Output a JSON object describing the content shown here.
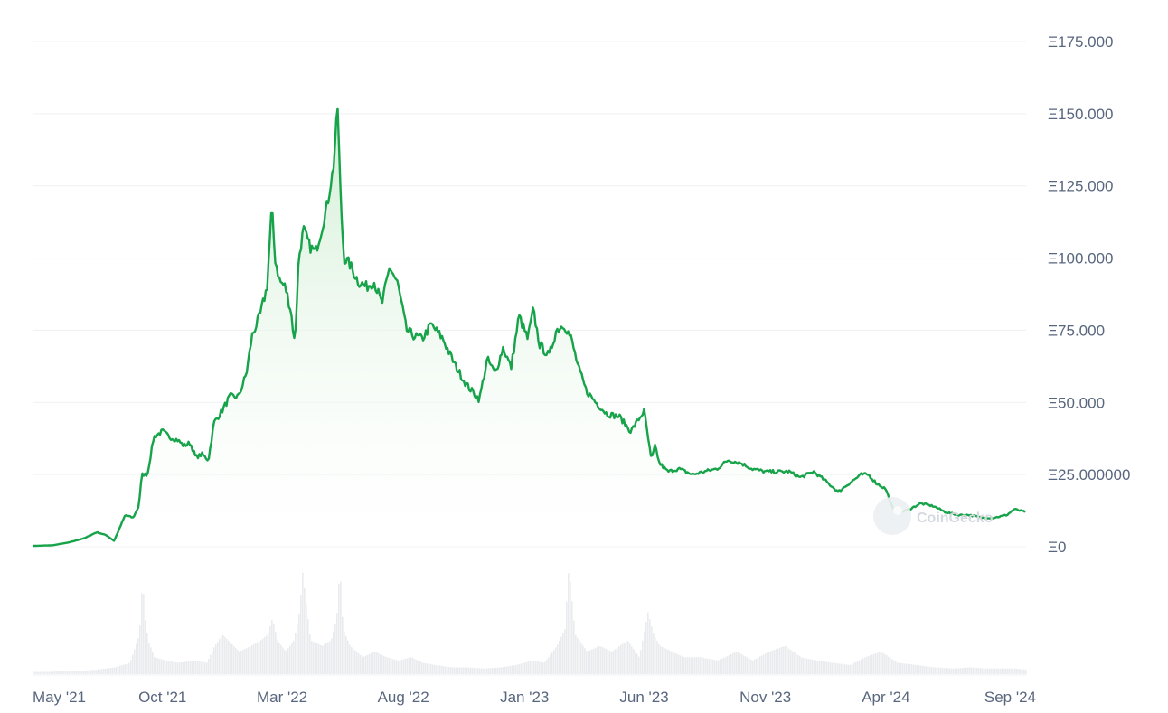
{
  "watermark": "CoinGecko",
  "colors": {
    "line": "#16a34a",
    "fill_top": "#cdeccf",
    "grid": "#eef0f3",
    "volume": "#e9ebee",
    "text": "#58667e"
  },
  "chart_data": {
    "type": "area",
    "title": "",
    "xlabel": "",
    "ylabel": "",
    "ylim": [
      0,
      175
    ],
    "y_ticks": [
      {
        "value": 175,
        "label": "Ξ175.000"
      },
      {
        "value": 150,
        "label": "Ξ150.000"
      },
      {
        "value": 125,
        "label": "Ξ125.000"
      },
      {
        "value": 100,
        "label": "Ξ100.000"
      },
      {
        "value": 75,
        "label": "Ξ75.000"
      },
      {
        "value": 50,
        "label": "Ξ50.000"
      },
      {
        "value": 25,
        "label": "Ξ25.000000"
      },
      {
        "value": 0,
        "label": "Ξ0"
      }
    ],
    "xlim": [
      "2021-04-20",
      "2024-09-25"
    ],
    "x_ticks": [
      {
        "date": "2021-05-01",
        "label": "May '21"
      },
      {
        "date": "2021-10-01",
        "label": "Oct '21"
      },
      {
        "date": "2022-03-01",
        "label": "Mar '22"
      },
      {
        "date": "2022-08-01",
        "label": "Aug '22"
      },
      {
        "date": "2023-01-01",
        "label": "Jan '23"
      },
      {
        "date": "2023-06-01",
        "label": "Jun '23"
      },
      {
        "date": "2023-11-01",
        "label": "Nov '23"
      },
      {
        "date": "2024-04-01",
        "label": "Apr '24"
      },
      {
        "date": "2024-09-01",
        "label": "Sep '24"
      }
    ],
    "grid": true,
    "legend": "none",
    "series": [
      {
        "x": [
          "2021-04-20",
          "2021-05-15",
          "2021-06-05",
          "2021-06-25",
          "2021-07-10",
          "2021-07-22",
          "2021-08-01",
          "2021-08-15",
          "2021-08-25",
          "2021-09-01",
          "2021-09-05",
          "2021-09-12",
          "2021-09-20",
          "2021-10-01",
          "2021-10-10",
          "2021-10-20",
          "2021-10-28",
          "2021-11-05",
          "2021-11-12",
          "2021-11-20",
          "2021-11-28",
          "2021-12-05",
          "2021-12-15",
          "2021-12-25",
          "2022-01-05",
          "2022-01-15",
          "2022-01-22",
          "2022-02-01",
          "2022-02-10",
          "2022-02-16",
          "2022-02-20",
          "2022-02-26",
          "2022-03-05",
          "2022-03-12",
          "2022-03-17",
          "2022-03-22",
          "2022-03-28",
          "2022-04-05",
          "2022-04-12",
          "2022-04-20",
          "2022-04-28",
          "2022-05-05",
          "2022-05-10",
          "2022-05-14",
          "2022-05-18",
          "2022-05-25",
          "2022-06-05",
          "2022-06-15",
          "2022-06-25",
          "2022-07-05",
          "2022-07-15",
          "2022-07-25",
          "2022-08-05",
          "2022-08-15",
          "2022-08-25",
          "2022-09-05",
          "2022-09-20",
          "2022-10-05",
          "2022-10-20",
          "2022-11-05",
          "2022-11-15",
          "2022-11-25",
          "2022-12-05",
          "2022-12-15",
          "2022-12-25",
          "2023-01-05",
          "2023-01-12",
          "2023-01-20",
          "2023-02-01",
          "2023-02-10",
          "2023-02-20",
          "2023-03-01",
          "2023-03-10",
          "2023-03-20",
          "2023-04-01",
          "2023-04-15",
          "2023-05-01",
          "2023-05-15",
          "2023-06-01",
          "2023-06-10",
          "2023-06-15",
          "2023-06-20",
          "2023-07-01",
          "2023-07-15",
          "2023-08-01",
          "2023-08-15",
          "2023-09-01",
          "2023-09-15",
          "2023-10-01",
          "2023-10-15",
          "2023-11-01",
          "2023-11-15",
          "2023-12-01",
          "2023-12-15",
          "2024-01-01",
          "2024-01-15",
          "2024-02-01",
          "2024-02-15",
          "2024-03-01",
          "2024-03-10",
          "2024-03-20",
          "2024-04-01",
          "2024-04-10",
          "2024-04-20",
          "2024-05-01",
          "2024-05-15",
          "2024-06-01",
          "2024-06-15",
          "2024-07-01",
          "2024-07-15",
          "2024-08-01",
          "2024-08-15",
          "2024-09-01",
          "2024-09-10",
          "2024-09-25"
        ],
        "values": [
          0.3,
          0.5,
          1.5,
          3,
          5,
          4,
          2,
          11,
          10,
          14,
          25,
          25,
          38,
          40,
          38,
          37,
          35,
          36,
          31,
          32,
          30,
          43,
          47,
          52,
          52,
          60,
          73,
          80,
          90,
          118,
          100,
          92,
          90,
          82,
          70,
          100,
          110,
          104,
          102,
          110,
          120,
          132,
          153,
          120,
          100,
          98,
          92,
          90,
          92,
          84,
          97,
          91,
          75,
          73,
          72,
          77,
          72,
          63,
          56,
          51,
          65,
          60,
          69,
          62,
          80,
          72,
          82,
          70,
          66,
          75,
          77,
          72,
          62,
          54,
          50,
          46,
          45,
          40,
          47,
          30,
          35,
          29,
          26,
          27,
          25,
          26,
          27,
          30,
          29,
          27,
          26,
          26,
          26,
          24,
          26,
          23,
          19,
          22,
          25,
          25,
          22,
          20,
          13,
          12,
          13,
          15,
          14,
          12,
          11,
          11,
          10,
          10,
          11,
          13,
          12
        ],
        "name": ""
      }
    ],
    "volume": {
      "x": [
        "2021-04-20",
        "2021-05-10",
        "2021-06-01",
        "2021-06-20",
        "2021-07-10",
        "2021-08-01",
        "2021-08-20",
        "2021-09-01",
        "2021-09-05",
        "2021-09-08",
        "2021-09-12",
        "2021-09-20",
        "2021-10-05",
        "2021-10-20",
        "2021-11-10",
        "2021-11-25",
        "2021-12-05",
        "2021-12-15",
        "2022-01-05",
        "2022-01-20",
        "2022-02-01",
        "2022-02-10",
        "2022-02-16",
        "2022-02-22",
        "2022-03-05",
        "2022-03-15",
        "2022-03-22",
        "2022-03-26",
        "2022-04-05",
        "2022-04-20",
        "2022-05-01",
        "2022-05-08",
        "2022-05-12",
        "2022-05-16",
        "2022-05-25",
        "2022-06-10",
        "2022-06-25",
        "2022-07-10",
        "2022-07-25",
        "2022-08-10",
        "2022-08-25",
        "2022-09-10",
        "2022-10-01",
        "2022-10-20",
        "2022-11-10",
        "2022-12-01",
        "2022-12-20",
        "2023-01-10",
        "2023-01-25",
        "2023-02-10",
        "2023-02-20",
        "2023-02-25",
        "2023-03-05",
        "2023-03-20",
        "2023-04-05",
        "2023-04-20",
        "2023-05-10",
        "2023-05-25",
        "2023-06-05",
        "2023-06-12",
        "2023-06-20",
        "2023-07-05",
        "2023-07-20",
        "2023-08-10",
        "2023-09-01",
        "2023-09-25",
        "2023-10-15",
        "2023-11-05",
        "2023-11-25",
        "2023-12-15",
        "2024-01-05",
        "2024-01-25",
        "2024-02-15",
        "2024-03-05",
        "2024-03-25",
        "2024-04-15",
        "2024-05-10",
        "2024-06-01",
        "2024-06-25",
        "2024-07-15",
        "2024-08-05",
        "2024-08-25",
        "2024-09-10",
        "2024-09-25"
      ],
      "values": [
        0.02,
        0.02,
        0.03,
        0.03,
        0.04,
        0.06,
        0.1,
        0.35,
        0.85,
        0.5,
        0.3,
        0.15,
        0.12,
        0.1,
        0.12,
        0.1,
        0.25,
        0.35,
        0.2,
        0.25,
        0.3,
        0.35,
        0.5,
        0.3,
        0.2,
        0.3,
        0.55,
        0.9,
        0.3,
        0.25,
        0.3,
        0.5,
        0.95,
        0.4,
        0.25,
        0.15,
        0.2,
        0.15,
        0.12,
        0.15,
        0.1,
        0.08,
        0.06,
        0.06,
        0.05,
        0.06,
        0.08,
        0.12,
        0.1,
        0.25,
        0.4,
        0.95,
        0.35,
        0.2,
        0.25,
        0.2,
        0.3,
        0.15,
        0.55,
        0.35,
        0.25,
        0.2,
        0.15,
        0.15,
        0.12,
        0.2,
        0.12,
        0.2,
        0.25,
        0.15,
        0.12,
        0.1,
        0.08,
        0.15,
        0.2,
        0.1,
        0.08,
        0.06,
        0.05,
        0.06,
        0.05,
        0.05,
        0.05,
        0.04
      ]
    }
  }
}
